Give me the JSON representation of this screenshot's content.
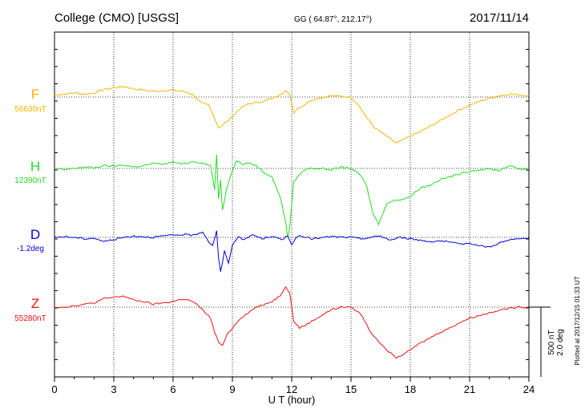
{
  "header": {
    "station": "College (CMO)  [USGS]",
    "coords": "GG ( 64.87°, 212.17°)",
    "date": "2017/11/14"
  },
  "footer": {
    "plotted": "Plotted at 2017/12/15 01:33 UT"
  },
  "scale": {
    "nt": "500 nT",
    "deg": "2.0 deg"
  },
  "chart_data": {
    "type": "line",
    "xlabel": "U T (hour)",
    "xlim": [
      0,
      24
    ],
    "xticks": [
      0,
      3,
      6,
      9,
      12,
      15,
      18,
      21,
      24
    ],
    "xtick_labels": [
      "0",
      "3",
      "6",
      "9",
      "12",
      "15",
      "18",
      "21",
      "24"
    ],
    "grid": true,
    "scale_bar_nT": 500,
    "series": [
      {
        "name": "F",
        "base": "56630nT",
        "color": "#f5b400",
        "baseline_nT": 0,
        "x": [
          0,
          0.5,
          1,
          1.5,
          2,
          2.5,
          3,
          3.5,
          4,
          4.5,
          5,
          5.5,
          6,
          6.5,
          7,
          7.4,
          7.8,
          8.1,
          8.3,
          8.5,
          8.7,
          9,
          9.4,
          9.8,
          10.2,
          10.6,
          11,
          11.4,
          11.7,
          11.9,
          12.1,
          12.3,
          12.6,
          13,
          14,
          15,
          15.4,
          15.8,
          16.2,
          16.6,
          17,
          17.3,
          17.6,
          18,
          18.5,
          19,
          19.5,
          20,
          20.5,
          21,
          21.5,
          22,
          22.5,
          23,
          23.5,
          24
        ],
        "y": [
          15,
          20,
          30,
          20,
          30,
          55,
          65,
          75,
          60,
          50,
          40,
          45,
          50,
          40,
          20,
          -40,
          -60,
          -150,
          -220,
          -200,
          -180,
          -140,
          -80,
          -50,
          -40,
          -30,
          -10,
          20,
          40,
          20,
          -110,
          -80,
          -60,
          -20,
          10,
          0,
          -60,
          -150,
          -220,
          -260,
          -300,
          -330,
          -310,
          -280,
          -250,
          -210,
          -170,
          -130,
          -90,
          -60,
          -30,
          -10,
          10,
          20,
          15,
          10
        ]
      },
      {
        "name": "H",
        "base": "12390nT",
        "color": "#22dd22",
        "baseline_nT": 0,
        "x": [
          0,
          0.5,
          1,
          1.5,
          2,
          2.5,
          3,
          3.5,
          4,
          4.5,
          5,
          5.5,
          6,
          6.5,
          7,
          7.5,
          7.9,
          8.1,
          8.2,
          8.3,
          8.4,
          8.5,
          8.7,
          8.9,
          9.2,
          9.5,
          9.8,
          10.2,
          10.6,
          11,
          11.4,
          11.7,
          11.8,
          11.9,
          12.1,
          12.4,
          12.8,
          13.5,
          14,
          14.5,
          15,
          15.5,
          15.8,
          16.1,
          16.4,
          16.8,
          17.2,
          17.6,
          18,
          18.5,
          19,
          19.5,
          20,
          20.5,
          21,
          21.5,
          22,
          22.5,
          23,
          23.5,
          24
        ],
        "y": [
          0,
          -10,
          0,
          10,
          5,
          20,
          15,
          25,
          10,
          20,
          35,
          30,
          45,
          30,
          50,
          40,
          20,
          -150,
          100,
          -220,
          -80,
          -300,
          -150,
          -50,
          60,
          30,
          40,
          20,
          -30,
          -60,
          -200,
          -380,
          -500,
          -420,
          -100,
          -40,
          0,
          0,
          -10,
          10,
          0,
          -50,
          -130,
          -320,
          -400,
          -250,
          -230,
          -220,
          -200,
          -140,
          -120,
          -80,
          -60,
          -40,
          -20,
          -10,
          -5,
          -15,
          20,
          -5,
          0
        ]
      },
      {
        "name": "D",
        "base": "-1.2deg",
        "color": "#0000dd",
        "baseline_nT": 0,
        "x": [
          0,
          0.5,
          1,
          1.5,
          2,
          2.5,
          3,
          3.5,
          4,
          4.5,
          5,
          5.5,
          6,
          6.5,
          7,
          7.5,
          7.8,
          8.0,
          8.2,
          8.3,
          8.4,
          8.6,
          8.8,
          9,
          9.3,
          9.6,
          10,
          10.5,
          11,
          11.5,
          11.8,
          12,
          12.3,
          12.7,
          13,
          14,
          15,
          15.5,
          16,
          16.5,
          17,
          17.5,
          18,
          18.5,
          19,
          19.5,
          20,
          20.5,
          21,
          21.5,
          22,
          22.5,
          23,
          23.5,
          24
        ],
        "y": [
          0,
          5,
          0,
          -10,
          -5,
          -30,
          -15,
          0,
          10,
          5,
          0,
          10,
          15,
          20,
          15,
          40,
          -30,
          -60,
          50,
          -150,
          -250,
          -100,
          -180,
          -60,
          10,
          -20,
          20,
          -10,
          10,
          -20,
          15,
          -50,
          10,
          0,
          -10,
          5,
          0,
          -10,
          0,
          10,
          -20,
          0,
          -10,
          -20,
          -30,
          -25,
          -35,
          -50,
          -40,
          -60,
          -70,
          -40,
          -20,
          -10,
          -5
        ]
      },
      {
        "name": "Z",
        "base": "55280nT",
        "color": "#ee1111",
        "baseline_nT": 0,
        "x": [
          0,
          0.5,
          1,
          1.5,
          2,
          2.5,
          3,
          3.5,
          4,
          4.5,
          5,
          5.5,
          6,
          6.5,
          7,
          7.5,
          7.9,
          8.1,
          8.3,
          8.5,
          8.7,
          9,
          9.4,
          9.8,
          10.2,
          10.6,
          11,
          11.4,
          11.7,
          11.9,
          12.1,
          12.4,
          12.8,
          13.5,
          14,
          14.5,
          15,
          15.5,
          16,
          16.5,
          17,
          17.3,
          17.6,
          18,
          18.5,
          19,
          19.5,
          20,
          20.5,
          21,
          21.5,
          22,
          22.5,
          23,
          23.5,
          24
        ],
        "y": [
          0,
          0,
          10,
          20,
          30,
          60,
          70,
          80,
          50,
          40,
          20,
          30,
          40,
          60,
          40,
          -20,
          -80,
          -180,
          -250,
          -280,
          -200,
          -150,
          -80,
          -40,
          0,
          20,
          40,
          80,
          150,
          100,
          -100,
          -150,
          -120,
          -60,
          -20,
          0,
          0,
          -50,
          -180,
          -260,
          -330,
          -360,
          -340,
          -300,
          -260,
          -220,
          -180,
          -150,
          -110,
          -80,
          -60,
          -40,
          -20,
          -10,
          0,
          0
        ]
      }
    ]
  }
}
